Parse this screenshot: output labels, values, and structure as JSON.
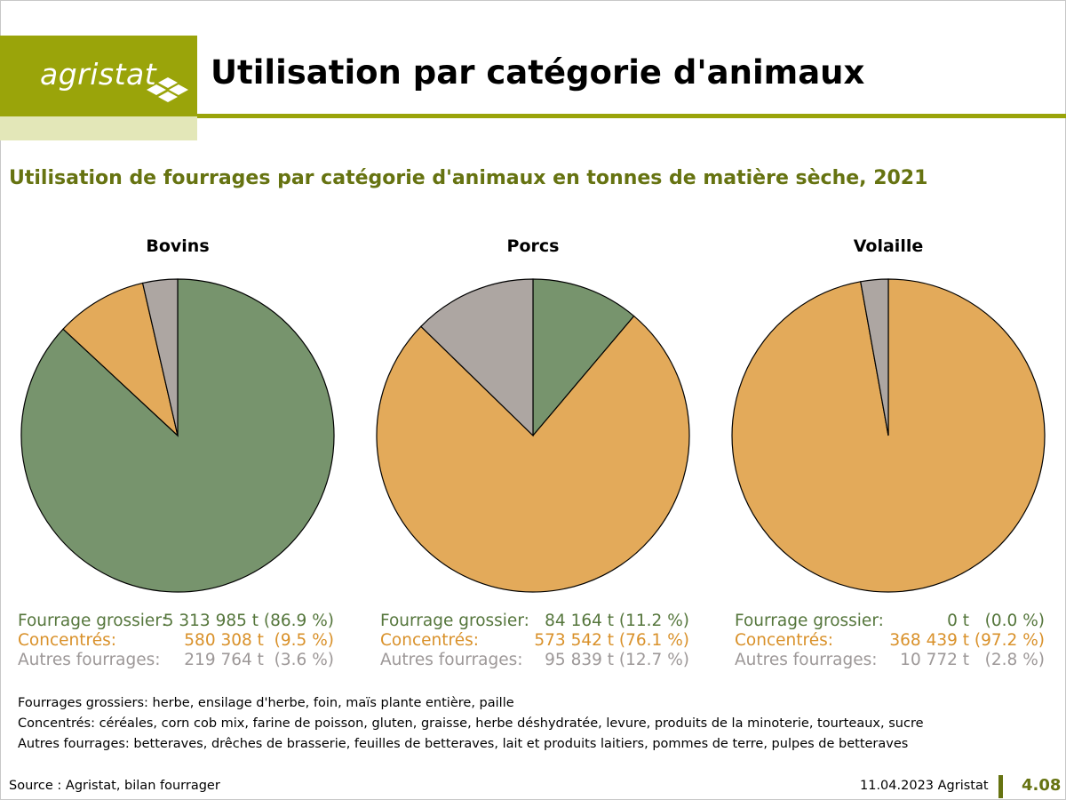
{
  "header": {
    "logo_text": "agristat",
    "title": "Utilisation par catégorie d'animaux"
  },
  "subtitle": "Utilisation de fourrages par catégorie d'animaux en tonnes de matière sèche, 2021",
  "colors": {
    "fourrage_grossier": "#77946d",
    "concentres": "#e3aa5a",
    "autres_fourrages": "#ada6a2",
    "accent": "#9aa40a"
  },
  "chart_data": [
    {
      "type": "pie",
      "title": "Bovins",
      "labels": [
        "Fourrage grossier:",
        "Concentrés:",
        "Autres fourrages:"
      ],
      "values": [
        5313985,
        580308,
        219764
      ],
      "percents": [
        86.9,
        9.5,
        3.6
      ],
      "value_labels": [
        "5 313 985 t (86.9 %)",
        "580 308 t  (9.5 %)",
        "219 764 t  (3.6 %)"
      ]
    },
    {
      "type": "pie",
      "title": "Porcs",
      "labels": [
        "Fourrage grossier:",
        "Concentrés:",
        "Autres fourrages:"
      ],
      "values": [
        84164,
        573542,
        95839
      ],
      "percents": [
        11.2,
        76.1,
        12.7
      ],
      "value_labels": [
        "84 164 t (11.2 %)",
        "573 542 t (76.1 %)",
        "95 839 t (12.7 %)"
      ]
    },
    {
      "type": "pie",
      "title": "Volaille",
      "labels": [
        "Fourrage grossier:",
        "Concentrés:",
        "Autres fourrages:"
      ],
      "values": [
        0,
        368439,
        10772
      ],
      "percents": [
        0.0,
        97.2,
        2.8
      ],
      "value_labels": [
        "0 t   (0.0 %)",
        "368 439 t (97.2 %)",
        "10 772 t   (2.8 %)"
      ]
    }
  ],
  "notes": [
    "Fourrages grossiers: herbe, ensilage d'herbe, foin, maïs plante entière, paille",
    "Concentrés: céréales, corn cob mix, farine de poisson, gluten, graisse, herbe déshydratée, levure, produits de la minoterie, tourteaux, sucre",
    "Autres fourrages: betteraves, drêches de brasserie, feuilles de betteraves, lait et produits laitiers, pommes de terre, pulpes de betteraves"
  ],
  "footer": {
    "source": "Source : Agristat, bilan fourrager",
    "date": "11.04.2023 Agristat",
    "page": "4.08"
  }
}
